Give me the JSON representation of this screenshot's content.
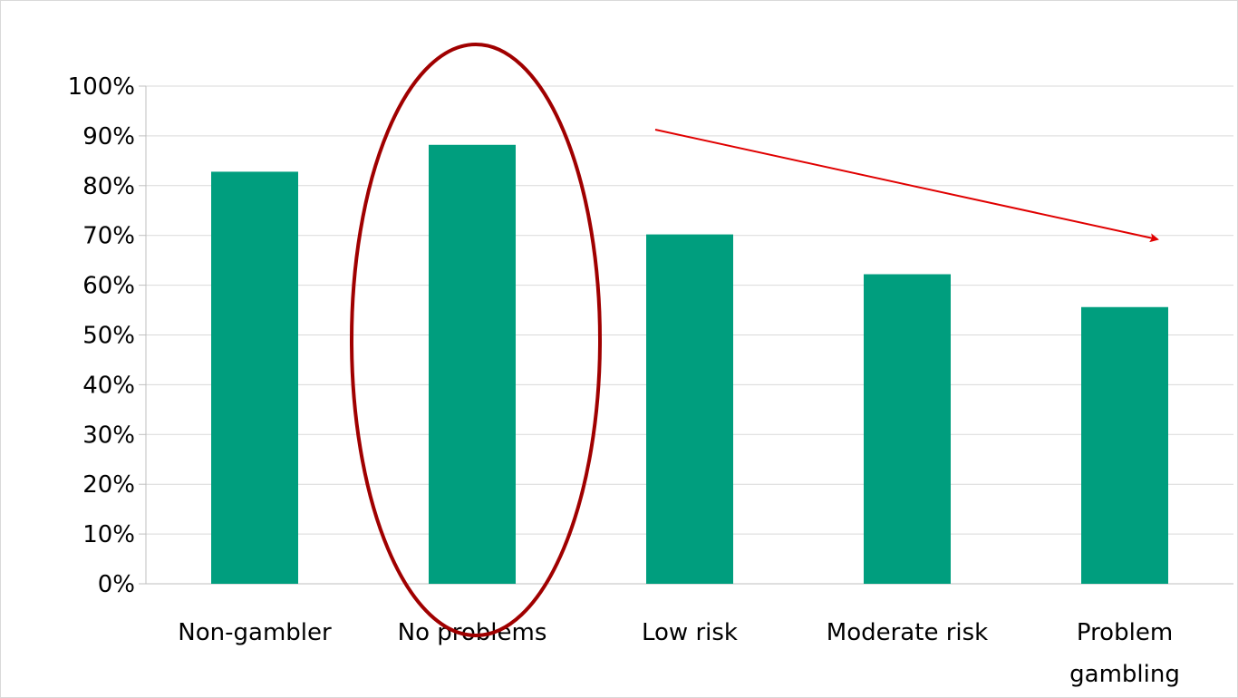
{
  "chart_data": {
    "type": "bar",
    "categories": [
      [
        "Non-gambler"
      ],
      [
        "No problems"
      ],
      [
        "Low risk"
      ],
      [
        "Moderate risk"
      ],
      [
        "Problem",
        "gambling"
      ]
    ],
    "values": [
      82.8,
      88.2,
      70.2,
      62.2,
      55.6
    ],
    "ylim": [
      0,
      100
    ],
    "yticks": [
      "0%",
      "10%",
      "20%",
      "30%",
      "40%",
      "50%",
      "60%",
      "70%",
      "80%",
      "90%",
      "100%"
    ],
    "grid": true,
    "title": "",
    "xlabel": "",
    "ylabel": "",
    "colors": {
      "bar": "#009E7E",
      "grid": "#d9d9d9",
      "axis": "#bfbfbf",
      "highlight_ellipse": "#A00000",
      "trend_arrow": "#E00000"
    },
    "annotations": {
      "highlighted_category": "No problems",
      "trend_arrow": "downward from No problems toward Problem gambling"
    }
  }
}
